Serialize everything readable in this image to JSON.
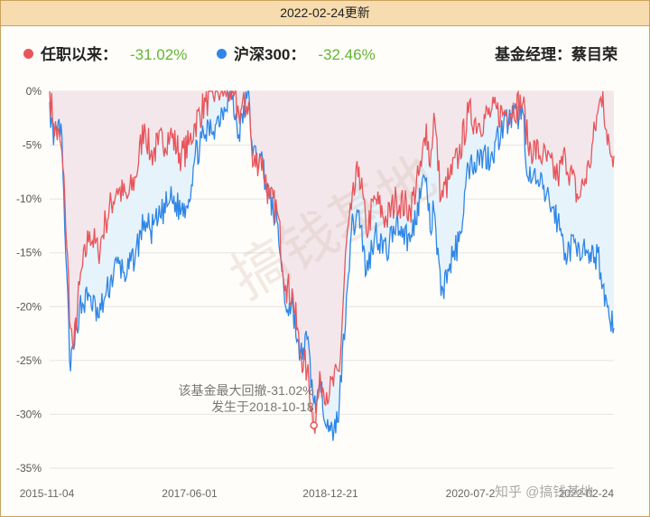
{
  "header": {
    "date_label": "2022-02-24更新"
  },
  "legend": [
    {
      "label": "任职以来：",
      "value": "-31.02%",
      "color": "#e8555a"
    },
    {
      "label": "沪深300：",
      "value": "-32.46%",
      "color": "#2f86e6"
    }
  ],
  "manager": {
    "label": "基金经理：",
    "name": "蔡目荣"
  },
  "watermark": "搞钱基地",
  "footer_brand": "知乎 @搞钱基地",
  "colors": {
    "fund": "#e8555a",
    "index": "#2f86e6",
    "fund_fill": "#f3e6ea",
    "index_fill": "#e6f3fb"
  },
  "chart_data": {
    "type": "line",
    "x_ticks": [
      "2015-11-04",
      "2017-06-01",
      "2018-12-21",
      "2020-07-2",
      "2022-02-24"
    ],
    "y_ticks": [
      "0%",
      "-5%",
      "-10%",
      "-15%",
      "-20%",
      "-25%",
      "-30%",
      "-35%"
    ],
    "ylim": [
      -35,
      0
    ],
    "x_range": [
      "2015-11-04",
      "2022-02-24"
    ],
    "grid": true,
    "series": [
      {
        "name": "任职以来",
        "color": "#e8555a",
        "points": [
          [
            "2015-11-04",
            0
          ],
          [
            "2015-11-20",
            -3
          ],
          [
            "2015-12-20",
            -5
          ],
          [
            "2016-01-05",
            -10
          ],
          [
            "2016-01-28",
            -22
          ],
          [
            "2016-02-10",
            -24
          ],
          [
            "2016-03-05",
            -18
          ],
          [
            "2016-04-15",
            -13
          ],
          [
            "2016-05-20",
            -15
          ],
          [
            "2016-06-20",
            -12
          ],
          [
            "2016-08-05",
            -9
          ],
          [
            "2016-09-15",
            -10
          ],
          [
            "2016-10-20",
            -8
          ],
          [
            "2016-11-25",
            -3
          ],
          [
            "2016-12-20",
            -6
          ],
          [
            "2017-01-20",
            -5
          ],
          [
            "2017-03-10",
            -4
          ],
          [
            "2017-04-25",
            -6
          ],
          [
            "2017-05-25",
            -5
          ],
          [
            "2017-06-20",
            -3
          ],
          [
            "2017-08-01",
            -1
          ],
          [
            "2017-09-15",
            0
          ],
          [
            "2017-11-10",
            0
          ],
          [
            "2017-12-15",
            -2
          ],
          [
            "2018-01-25",
            -1
          ],
          [
            "2018-02-10",
            -7
          ],
          [
            "2018-03-15",
            -6
          ],
          [
            "2018-04-20",
            -10
          ],
          [
            "2018-05-20",
            -11
          ],
          [
            "2018-06-25",
            -18
          ],
          [
            "2018-07-25",
            -19
          ],
          [
            "2018-08-20",
            -24
          ],
          [
            "2018-09-20",
            -26
          ],
          [
            "2018-10-18",
            -31.02
          ],
          [
            "2018-11-15",
            -27
          ],
          [
            "2018-12-21",
            -28
          ],
          [
            "2019-01-30",
            -26
          ],
          [
            "2019-02-28",
            -14
          ],
          [
            "2019-03-20",
            -11
          ],
          [
            "2019-04-20",
            -7
          ],
          [
            "2019-05-20",
            -13
          ],
          [
            "2019-06-25",
            -10
          ],
          [
            "2019-08-10",
            -12
          ],
          [
            "2019-09-20",
            -10
          ],
          [
            "2019-11-15",
            -11
          ],
          [
            "2019-12-31",
            -7
          ],
          [
            "2020-01-20",
            -3
          ],
          [
            "2020-02-05",
            -7
          ],
          [
            "2020-02-20",
            -2
          ],
          [
            "2020-03-20",
            -10
          ],
          [
            "2020-04-25",
            -8
          ],
          [
            "2020-06-01",
            -6
          ],
          [
            "2020-07-10",
            -2
          ],
          [
            "2020-08-20",
            -3
          ],
          [
            "2020-10-10",
            -2
          ],
          [
            "2020-12-01",
            -2
          ],
          [
            "2021-02-18",
            -1
          ],
          [
            "2021-03-10",
            -5
          ],
          [
            "2021-05-10",
            -6
          ],
          [
            "2021-07-10",
            -8
          ],
          [
            "2021-08-10",
            -6
          ],
          [
            "2021-10-01",
            -10
          ],
          [
            "2021-11-15",
            -7
          ],
          [
            "2021-12-20",
            -2
          ],
          [
            "2022-01-10",
            0
          ],
          [
            "2022-01-28",
            -5
          ],
          [
            "2022-02-24",
            -6
          ]
        ]
      },
      {
        "name": "沪深300",
        "color": "#2f86e6",
        "points": [
          [
            "2015-11-04",
            -1
          ],
          [
            "2015-11-20",
            -5
          ],
          [
            "2015-12-20",
            -3
          ],
          [
            "2016-01-05",
            -13
          ],
          [
            "2016-01-28",
            -26
          ],
          [
            "2016-02-10",
            -24
          ],
          [
            "2016-03-05",
            -20
          ],
          [
            "2016-04-15",
            -19
          ],
          [
            "2016-05-20",
            -21
          ],
          [
            "2016-06-20",
            -19
          ],
          [
            "2016-08-05",
            -16
          ],
          [
            "2016-09-15",
            -17
          ],
          [
            "2016-10-20",
            -15
          ],
          [
            "2016-11-25",
            -12
          ],
          [
            "2016-12-20",
            -13
          ],
          [
            "2017-01-20",
            -12
          ],
          [
            "2017-03-10",
            -10
          ],
          [
            "2017-04-25",
            -11
          ],
          [
            "2017-05-25",
            -10
          ],
          [
            "2017-06-20",
            -6
          ],
          [
            "2017-08-01",
            -4
          ],
          [
            "2017-09-15",
            -3
          ],
          [
            "2017-11-10",
            0
          ],
          [
            "2017-12-15",
            -4
          ],
          [
            "2018-01-25",
            0
          ],
          [
            "2018-02-10",
            -6
          ],
          [
            "2018-03-15",
            -6
          ],
          [
            "2018-04-20",
            -10
          ],
          [
            "2018-05-20",
            -12
          ],
          [
            "2018-06-25",
            -20
          ],
          [
            "2018-07-25",
            -20
          ],
          [
            "2018-08-20",
            -25
          ],
          [
            "2018-09-20",
            -23
          ],
          [
            "2018-10-18",
            -29
          ],
          [
            "2018-11-15",
            -28
          ],
          [
            "2018-12-21",
            -31
          ],
          [
            "2019-01-04",
            -32.46
          ],
          [
            "2019-01-30",
            -29
          ],
          [
            "2019-02-28",
            -19
          ],
          [
            "2019-03-20",
            -13
          ],
          [
            "2019-04-20",
            -11
          ],
          [
            "2019-05-20",
            -17
          ],
          [
            "2019-06-25",
            -13
          ],
          [
            "2019-08-10",
            -15
          ],
          [
            "2019-09-20",
            -12
          ],
          [
            "2019-11-15",
            -14
          ],
          [
            "2019-12-31",
            -9
          ],
          [
            "2020-01-20",
            -8
          ],
          [
            "2020-02-05",
            -13
          ],
          [
            "2020-02-20",
            -11
          ],
          [
            "2020-03-20",
            -19
          ],
          [
            "2020-04-25",
            -16
          ],
          [
            "2020-06-01",
            -14
          ],
          [
            "2020-07-10",
            -7
          ],
          [
            "2020-08-20",
            -6
          ],
          [
            "2020-10-10",
            -6
          ],
          [
            "2020-12-01",
            -3
          ],
          [
            "2021-02-18",
            -2
          ],
          [
            "2021-03-10",
            -8
          ],
          [
            "2021-05-10",
            -9
          ],
          [
            "2021-07-10",
            -12
          ],
          [
            "2021-08-10",
            -15
          ],
          [
            "2021-10-01",
            -14
          ],
          [
            "2021-11-15",
            -16
          ],
          [
            "2021-12-20",
            -15
          ],
          [
            "2022-01-10",
            -18
          ],
          [
            "2022-01-28",
            -20
          ],
          [
            "2022-02-24",
            -22
          ]
        ]
      }
    ],
    "annotation": {
      "lines": [
        "该基金最大回撤-31.02%",
        "发生于2018-10-18"
      ],
      "x": "2018-10-18",
      "y": -31.02
    }
  }
}
